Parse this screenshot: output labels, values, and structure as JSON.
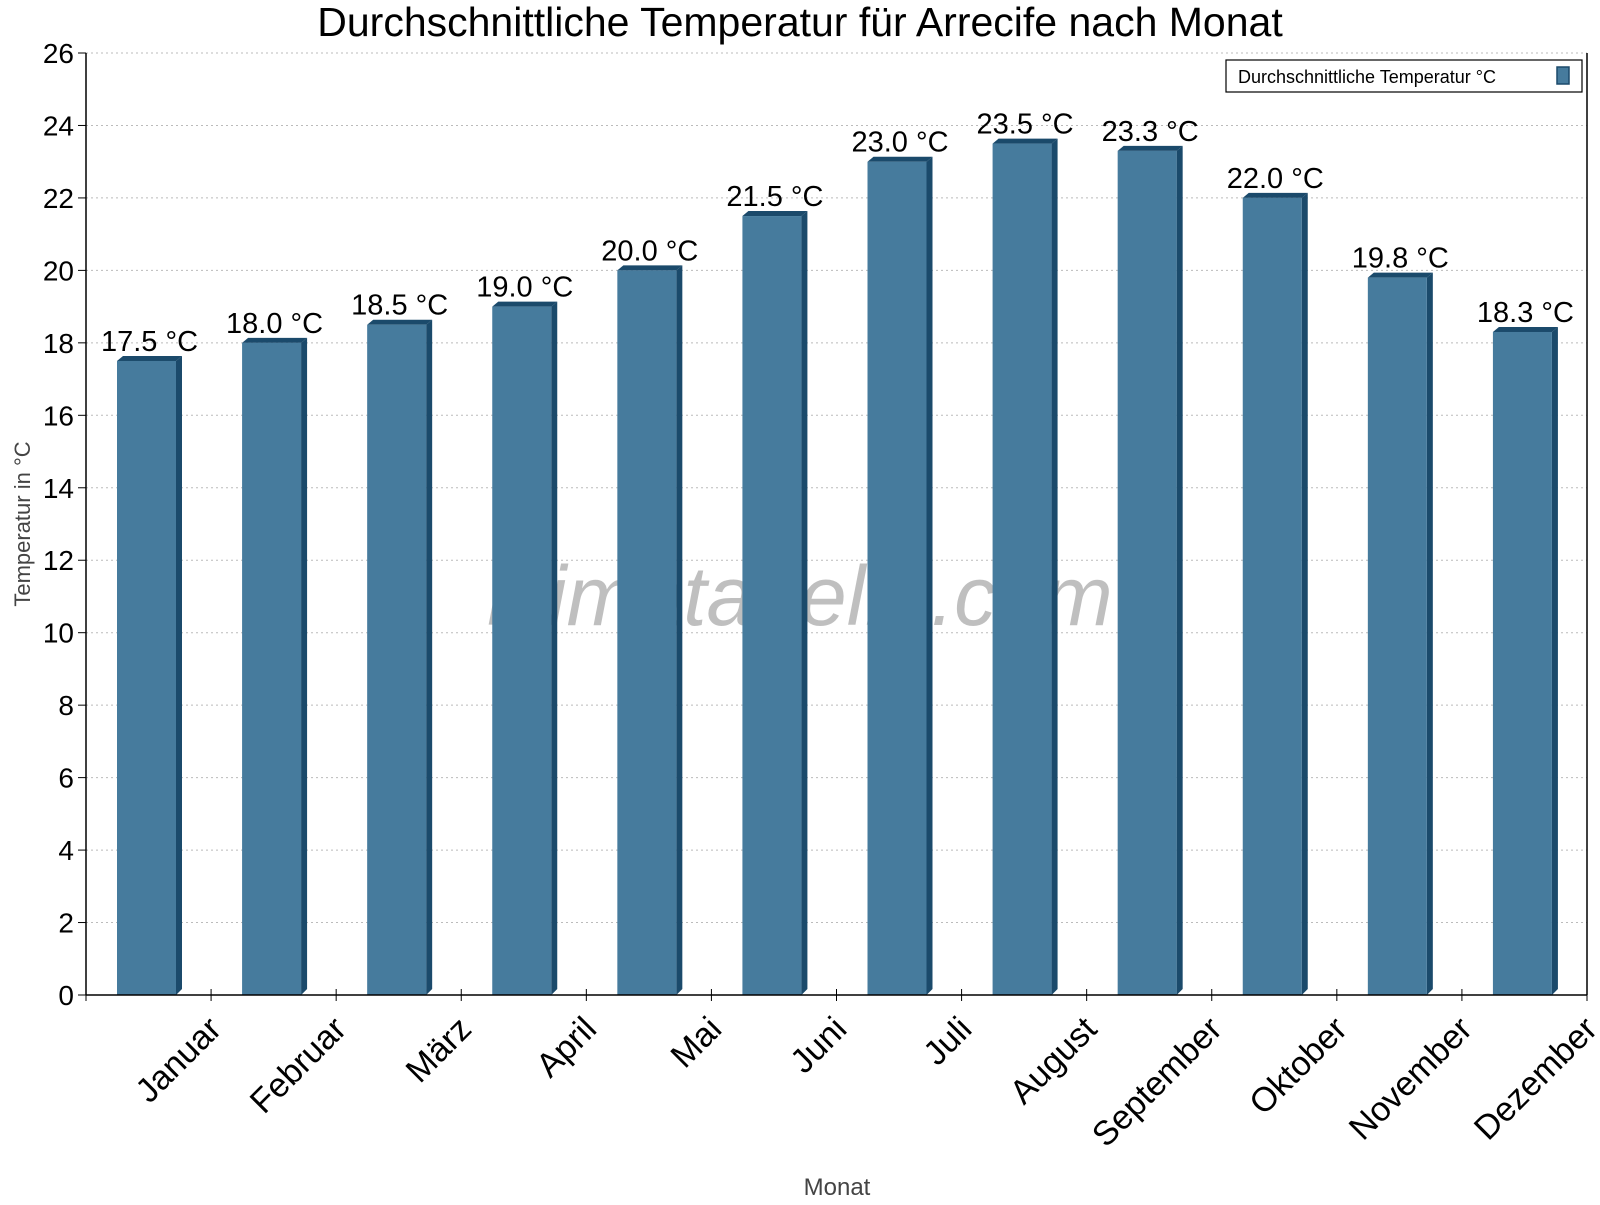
{
  "chart_data": {
    "type": "bar",
    "title": "Durchschnittliche Temperatur für Arrecife nach Monat",
    "xlabel": "Monat",
    "ylabel": "Temperatur in °C",
    "ylim": [
      0,
      26
    ],
    "yticks": [
      0,
      2,
      4,
      6,
      8,
      10,
      12,
      14,
      16,
      18,
      20,
      22,
      24,
      26
    ],
    "grid": true,
    "legend_position": "top-right",
    "categories": [
      "Januar",
      "Februar",
      "März",
      "April",
      "Mai",
      "Juni",
      "Juli",
      "August",
      "September",
      "Oktober",
      "November",
      "Dezember"
    ],
    "series": [
      {
        "name": "Durchschnittliche Temperatur °C",
        "values": [
          17.5,
          18.0,
          18.5,
          19.0,
          20.0,
          21.5,
          23.0,
          23.5,
          23.3,
          22.0,
          19.8,
          18.3
        ],
        "data_labels": [
          "17.5 °C",
          "18.0 °C",
          "18.5 °C",
          "19.0 °C",
          "20.0 °C",
          "21.5 °C",
          "23.0 °C",
          "23.5 °C",
          "23.3 °C",
          "22.0 °C",
          "19.8 °C",
          "18.3 °C"
        ],
        "color": "#467b9d",
        "side_color": "#1b4a6b"
      }
    ],
    "watermark": "klimatabelle.com"
  }
}
